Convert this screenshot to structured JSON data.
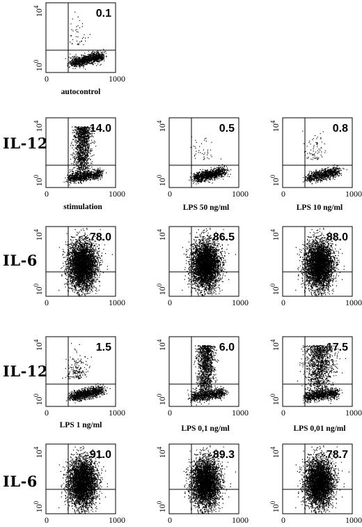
{
  "figure": {
    "axis": {
      "x_min_label": "0",
      "x_max_label": "1000",
      "y_min_label": "10",
      "y_min_exp": "0",
      "y_max_label": "10",
      "y_max_exp": "4"
    },
    "row_labels": [
      {
        "text": "IL-12"
      },
      {
        "text": "IL-6"
      },
      {
        "text": "IL-12"
      },
      {
        "text": "IL-6"
      }
    ],
    "captions": [
      {
        "text": "autocontrol"
      },
      {
        "text": "stimulation"
      },
      {
        "text": "LPS 50 ng/ml"
      },
      {
        "text": "LPS 10 ng/ml"
      },
      {
        "text": "LPS 1 ng/ml"
      },
      {
        "text": "LPS 0,1 ng/ml"
      },
      {
        "text": "LPS 0,01 ng/ml"
      }
    ]
  },
  "chart_data": [
    {
      "type": "scatter",
      "panel": "autocontrol",
      "upper_right_percent": "0.1",
      "xlim": [
        0,
        1000
      ],
      "ylim_log10": [
        0,
        4
      ]
    },
    {
      "type": "scatter",
      "panel": "IL-12 stimulation",
      "upper_right_percent": "14.0",
      "xlim": [
        0,
        1000
      ],
      "ylim_log10": [
        0,
        4
      ]
    },
    {
      "type": "scatter",
      "panel": "IL-12 LPS 50 ng/ml",
      "upper_right_percent": "0.5",
      "xlim": [
        0,
        1000
      ],
      "ylim_log10": [
        0,
        4
      ]
    },
    {
      "type": "scatter",
      "panel": "IL-12 LPS 10 ng/ml",
      "upper_right_percent": "0.8",
      "xlim": [
        0,
        1000
      ],
      "ylim_log10": [
        0,
        4
      ]
    },
    {
      "type": "scatter",
      "panel": "IL-6 stimulation",
      "upper_right_percent": "78.0",
      "xlim": [
        0,
        1000
      ],
      "ylim_log10": [
        0,
        4
      ]
    },
    {
      "type": "scatter",
      "panel": "IL-6 LPS 50 ng/ml",
      "upper_right_percent": "86.5",
      "xlim": [
        0,
        1000
      ],
      "ylim_log10": [
        0,
        4
      ]
    },
    {
      "type": "scatter",
      "panel": "IL-6 LPS 10 ng/ml",
      "upper_right_percent": "88.0",
      "xlim": [
        0,
        1000
      ],
      "ylim_log10": [
        0,
        4
      ]
    },
    {
      "type": "scatter",
      "panel": "IL-12 LPS 1 ng/ml",
      "upper_right_percent": "1.5",
      "xlim": [
        0,
        1000
      ],
      "ylim_log10": [
        0,
        4
      ]
    },
    {
      "type": "scatter",
      "panel": "IL-12 LPS 0,1 ng/ml",
      "upper_right_percent": "6.0",
      "xlim": [
        0,
        1000
      ],
      "ylim_log10": [
        0,
        4
      ]
    },
    {
      "type": "scatter",
      "panel": "IL-12 LPS 0,01 ng/ml",
      "upper_right_percent": "17.5",
      "xlim": [
        0,
        1000
      ],
      "ylim_log10": [
        0,
        4
      ]
    },
    {
      "type": "scatter",
      "panel": "IL-6 LPS 1 ng/ml",
      "upper_right_percent": "91.0",
      "xlim": [
        0,
        1000
      ],
      "ylim_log10": [
        0,
        4
      ]
    },
    {
      "type": "scatter",
      "panel": "IL-6 LPS 0,1 ng/ml",
      "upper_right_percent": "89.3",
      "xlim": [
        0,
        1000
      ],
      "ylim_log10": [
        0,
        4
      ]
    },
    {
      "type": "scatter",
      "panel": "IL-6 LPS 0,01 ng/ml",
      "upper_right_percent": "78.7",
      "xlim": [
        0,
        1000
      ],
      "ylim_log10": [
        0,
        4
      ]
    }
  ]
}
